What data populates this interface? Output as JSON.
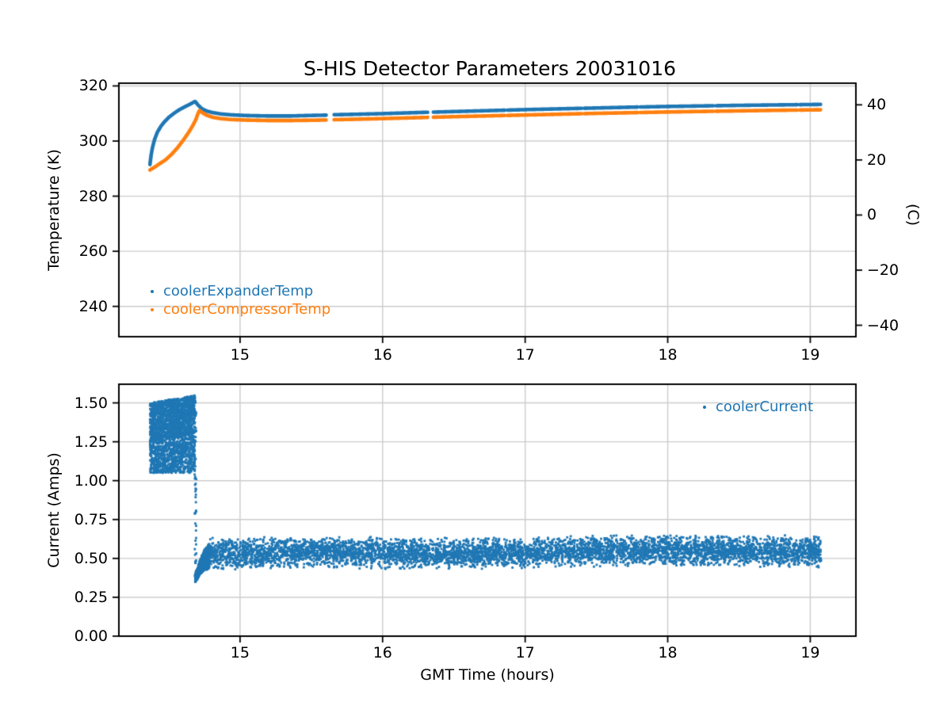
{
  "figure": {
    "title": "S-HIS Detector Parameters 20031016",
    "background": "#ffffff"
  },
  "colors": {
    "blue": "#1f77b4",
    "orange": "#ff7f0e",
    "grid": "#cccccc",
    "axis": "#000000"
  },
  "chart_data": [
    {
      "type": "scatter",
      "title": "S-HIS Detector Parameters 20031016",
      "xlabel": "",
      "ylabel": "Temperature (K)",
      "xlim": [
        14.15,
        19.32
      ],
      "ylim": [
        229,
        321
      ],
      "xticks": [
        15,
        16,
        17,
        18,
        19
      ],
      "xtick_labels": [
        "15",
        "16",
        "17",
        "18",
        "19"
      ],
      "yticks": [
        320,
        300,
        280,
        260,
        240
      ],
      "ytick_labels": [
        "320",
        "300",
        "280",
        "260",
        "240"
      ],
      "right_axis": {
        "label": "(C)",
        "ticks": [
          40,
          20,
          0,
          -20,
          -40
        ],
        "tick_labels": [
          "40",
          "20",
          "0",
          "−20",
          "−40"
        ],
        "kelvin_offset": 273.15
      },
      "grid": true,
      "legend": {
        "position": "lower-left",
        "entries": [
          {
            "label": "coolerExpanderTemp",
            "color": "#1f77b4"
          },
          {
            "label": "coolerCompressorTemp",
            "color": "#ff7f0e"
          }
        ]
      },
      "gaps": [
        [
          15.604,
          15.659
        ],
        [
          16.317,
          16.352
        ],
        [
          16.858,
          16.874
        ],
        [
          17.4,
          17.416
        ],
        [
          17.792,
          17.808
        ],
        [
          18.321,
          18.337
        ],
        [
          18.909,
          18.925
        ]
      ],
      "series": [
        {
          "name": "coolerExpanderTemp",
          "color": "#1f77b4",
          "points": [
            [
              14.368,
              291.5
            ],
            [
              14.375,
              294.5
            ],
            [
              14.385,
              297.5
            ],
            [
              14.4,
              300.5
            ],
            [
              14.42,
              303.2
            ],
            [
              14.445,
              305.4
            ],
            [
              14.47,
              307.0
            ],
            [
              14.5,
              308.6
            ],
            [
              14.535,
              310.0
            ],
            [
              14.575,
              311.4
            ],
            [
              14.615,
              312.5
            ],
            [
              14.65,
              313.4
            ],
            [
              14.685,
              314.4
            ],
            [
              14.705,
              313.1
            ],
            [
              14.73,
              311.8
            ],
            [
              14.765,
              310.9
            ],
            [
              14.81,
              310.3
            ],
            [
              14.87,
              309.8
            ],
            [
              14.94,
              309.5
            ],
            [
              15.05,
              309.25
            ],
            [
              15.2,
              309.1
            ],
            [
              15.35,
              309.1
            ],
            [
              15.5,
              309.3
            ],
            [
              15.604,
              309.4
            ],
            [
              15.659,
              309.55
            ],
            [
              15.8,
              309.7
            ],
            [
              16.0,
              309.95
            ],
            [
              16.25,
              310.35
            ],
            [
              16.5,
              310.7
            ],
            [
              16.75,
              311.05
            ],
            [
              17.0,
              311.4
            ],
            [
              17.25,
              311.7
            ],
            [
              17.5,
              312.0
            ],
            [
              17.75,
              312.3
            ],
            [
              18.0,
              312.55
            ],
            [
              18.25,
              312.75
            ],
            [
              18.5,
              312.95
            ],
            [
              18.75,
              313.1
            ],
            [
              19.0,
              313.25
            ],
            [
              19.075,
              313.3
            ]
          ]
        },
        {
          "name": "coolerCompressorTemp",
          "color": "#ff7f0e",
          "points": [
            [
              14.368,
              289.5
            ],
            [
              14.4,
              290.5
            ],
            [
              14.44,
              291.9
            ],
            [
              14.48,
              293.3
            ],
            [
              14.52,
              295.2
            ],
            [
              14.56,
              297.5
            ],
            [
              14.6,
              300.2
            ],
            [
              14.635,
              302.8
            ],
            [
              14.665,
              305.3
            ],
            [
              14.69,
              307.8
            ],
            [
              14.705,
              310.0
            ],
            [
              14.715,
              311.1
            ],
            [
              14.735,
              310.3
            ],
            [
              14.765,
              309.4
            ],
            [
              14.81,
              308.6
            ],
            [
              14.87,
              308.1
            ],
            [
              14.94,
              307.8
            ],
            [
              15.05,
              307.6
            ],
            [
              15.2,
              307.45
            ],
            [
              15.35,
              307.45
            ],
            [
              15.5,
              307.55
            ],
            [
              15.604,
              307.65
            ],
            [
              15.659,
              307.75
            ],
            [
              15.8,
              307.9
            ],
            [
              16.0,
              308.15
            ],
            [
              16.25,
              308.5
            ],
            [
              16.5,
              308.85
            ],
            [
              16.75,
              309.15
            ],
            [
              17.0,
              309.45
            ],
            [
              17.25,
              309.75
            ],
            [
              17.5,
              310.05
            ],
            [
              17.75,
              310.3
            ],
            [
              18.0,
              310.55
            ],
            [
              18.25,
              310.75
            ],
            [
              18.5,
              310.95
            ],
            [
              18.75,
              311.15
            ],
            [
              19.0,
              311.3
            ],
            [
              19.075,
              311.35
            ]
          ]
        }
      ]
    },
    {
      "type": "scatter",
      "xlabel": "GMT Time (hours)",
      "ylabel": "Current (Amps)",
      "xlim": [
        14.15,
        19.32
      ],
      "ylim": [
        0,
        1.62
      ],
      "xticks": [
        15,
        16,
        17,
        18,
        19
      ],
      "xtick_labels": [
        "15",
        "16",
        "17",
        "18",
        "19"
      ],
      "yticks": [
        1.5,
        1.25,
        1.0,
        0.75,
        0.5,
        0.25,
        0.0
      ],
      "ytick_labels": [
        "1.50",
        "1.25",
        "1.00",
        "0.75",
        "0.50",
        "0.25",
        "0.00"
      ],
      "grid": true,
      "legend": {
        "position": "upper-right",
        "entries": [
          {
            "label": "coolerCurrent",
            "color": "#1f77b4"
          }
        ]
      },
      "gaps": [
        [
          15.512,
          15.524
        ],
        [
          15.604,
          15.659
        ],
        [
          16.317,
          16.352
        ],
        [
          16.858,
          16.874
        ],
        [
          17.4,
          17.416
        ],
        [
          17.792,
          17.808
        ],
        [
          18.321,
          18.337
        ],
        [
          18.909,
          18.925
        ]
      ],
      "series": [
        {
          "name": "coolerCurrent",
          "color": "#1f77b4",
          "t_range": [
            14.368,
            19.075
          ],
          "envelope": {
            "startup_block": {
              "t": [
                14.368,
                14.683
              ],
              "y_bottom": 1.05,
              "y_top_start": 1.5,
              "y_top_end": 1.55
            },
            "shutdown_drop": {
              "t": [
                14.681,
                14.701
              ],
              "y_from": 1.54,
              "y_to": 0.36
            },
            "recovery_center": [
              [
                14.685,
                0.37
              ],
              [
                14.7,
                0.4
              ],
              [
                14.72,
                0.445
              ],
              [
                14.75,
                0.49
              ],
              [
                14.785,
                0.515
              ]
            ],
            "steady_band": {
              "t": [
                14.785,
                19.075
              ],
              "center_start": 0.528,
              "center_end": 0.552,
              "halfwidth": 0.095
            }
          }
        }
      ]
    }
  ]
}
